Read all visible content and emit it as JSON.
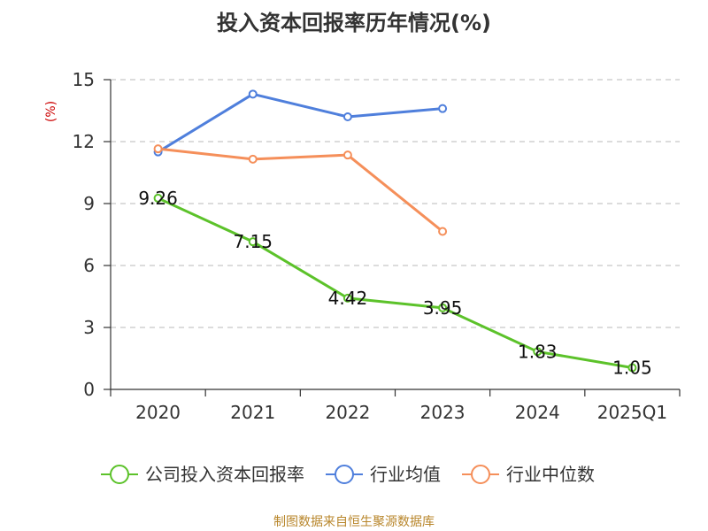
{
  "chart_data": {
    "type": "line",
    "title": "投入资本回报率历年情况(%)",
    "ylabel": "(%)",
    "xlabel": "",
    "categories": [
      "2020",
      "2021",
      "2022",
      "2023",
      "2024",
      "2025Q1"
    ],
    "ylim": [
      0,
      15
    ],
    "yticks": [
      0,
      3,
      6,
      9,
      12,
      15
    ],
    "grid": true,
    "legend_position": "bottom",
    "series": [
      {
        "name": "公司投入资本回报率",
        "color": "#5cc22a",
        "values": [
          9.26,
          7.15,
          4.42,
          3.95,
          1.83,
          1.05
        ],
        "labels": [
          "9.26",
          "7.15",
          "4.42",
          "3.95",
          "1.83",
          "1.05"
        ]
      },
      {
        "name": "行业均值",
        "color": "#4f7fdc",
        "values": [
          11.5,
          14.3,
          13.2,
          13.6,
          null,
          null
        ]
      },
      {
        "name": "行业中位数",
        "color": "#f58f5a",
        "values": [
          11.65,
          11.15,
          11.35,
          7.65,
          null,
          null
        ]
      }
    ],
    "source": "制图数据来自恒生聚源数据库"
  }
}
